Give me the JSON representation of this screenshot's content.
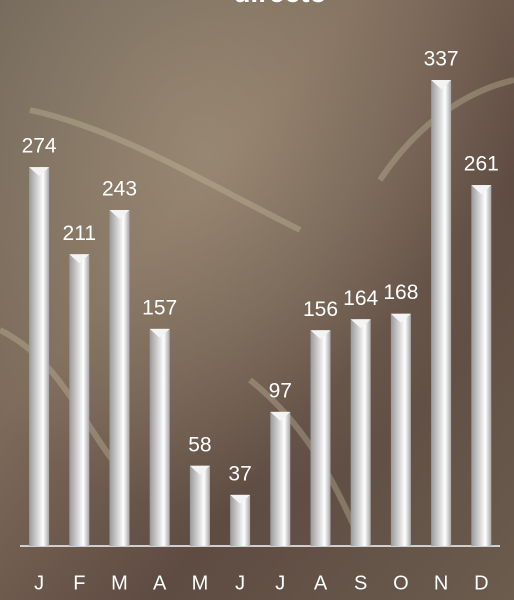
{
  "chart_data": {
    "type": "bar",
    "title": "directo",
    "categories": [
      "J",
      "F",
      "M",
      "A",
      "M",
      "J",
      "J",
      "A",
      "S",
      "O",
      "N",
      "D"
    ],
    "values": [
      274,
      211,
      243,
      157,
      58,
      37,
      97,
      156,
      164,
      168,
      337,
      261
    ],
    "color": "#d9d9d9"
  }
}
